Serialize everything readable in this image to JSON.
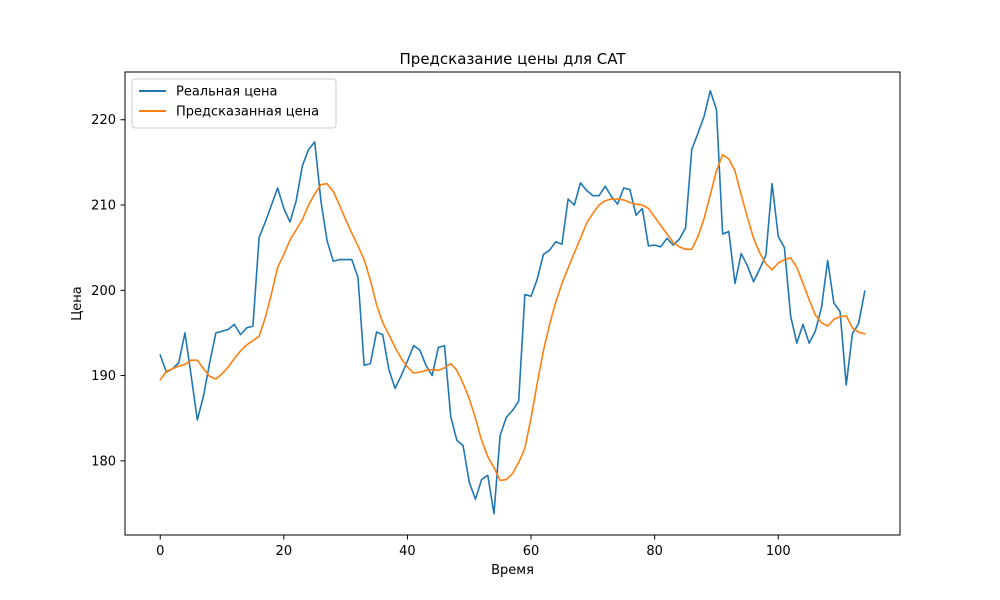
{
  "chart_data": {
    "type": "line",
    "title": "Предсказание цены для CAT",
    "xlabel": "Время",
    "ylabel": "Цена",
    "xlim": [
      -5.7,
      119.7
    ],
    "ylim": [
      171.3,
      225.6
    ],
    "xticks": [
      0,
      20,
      40,
      60,
      80,
      100
    ],
    "yticks": [
      180,
      190,
      200,
      210,
      220
    ],
    "legend_position": "upper-left",
    "grid": false,
    "series": [
      {
        "name": "Реальная цена",
        "color": "#1f77b4",
        "x": [
          0,
          1,
          2,
          3,
          4,
          5,
          6,
          7,
          8,
          9,
          10,
          11,
          12,
          13,
          14,
          15,
          16,
          17,
          18,
          19,
          20,
          21,
          22,
          23,
          24,
          25,
          26,
          27,
          28,
          29,
          30,
          31,
          32,
          33,
          34,
          35,
          36,
          37,
          38,
          39,
          40,
          41,
          42,
          43,
          44,
          45,
          46,
          47,
          48,
          49,
          50,
          51,
          52,
          53,
          54,
          55,
          56,
          57,
          58,
          59,
          60,
          61,
          62,
          63,
          64,
          65,
          66,
          67,
          68,
          69,
          70,
          71,
          72,
          73,
          74,
          75,
          76,
          77,
          78,
          79,
          80,
          81,
          82,
          83,
          84,
          85,
          86,
          87,
          88,
          89,
          90,
          91,
          92,
          93,
          94,
          95,
          96,
          97,
          98,
          99,
          100,
          101,
          102,
          103,
          104,
          105,
          106,
          107,
          108,
          109,
          110,
          111,
          112,
          113,
          114
        ],
        "values": [
          192.4,
          190.4,
          190.8,
          191.5,
          195.0,
          190.0,
          184.8,
          187.6,
          191.5,
          195.0,
          195.2,
          195.4,
          196.0,
          194.8,
          195.6,
          195.8,
          206.2,
          208.0,
          210.0,
          212.0,
          209.6,
          208.0,
          210.5,
          214.6,
          216.5,
          217.4,
          210.5,
          205.8,
          203.4,
          203.6,
          203.6,
          203.6,
          201.5,
          191.2,
          191.4,
          195.1,
          194.8,
          190.7,
          188.5,
          190.0,
          191.7,
          193.5,
          193.0,
          191.2,
          190.0,
          193.3,
          193.5,
          185.2,
          182.4,
          181.8,
          177.5,
          175.5,
          177.8,
          178.3,
          173.8,
          183.0,
          185.1,
          185.9,
          187.0,
          199.5,
          199.3,
          201.3,
          204.2,
          204.7,
          205.7,
          205.4,
          210.7,
          210.0,
          212.6,
          211.7,
          211.1,
          211.1,
          212.2,
          211.0,
          210.1,
          212.0,
          211.8,
          208.8,
          209.6,
          205.2,
          205.3,
          205.1,
          206.1,
          205.3,
          206.0,
          207.3,
          216.5,
          218.4,
          220.4,
          223.4,
          221.2,
          206.6,
          206.9,
          200.8,
          204.3,
          202.9,
          201.0,
          202.5,
          204.1,
          212.5,
          206.3,
          205.0,
          197.0,
          193.8,
          196.0,
          193.8,
          195.2,
          198.0,
          203.5,
          198.5,
          197.5,
          188.9,
          194.9,
          196.1,
          199.9
        ]
      },
      {
        "name": "Предсказанная цена",
        "color": "#ff7f0e",
        "x": [
          0,
          1,
          2,
          3,
          4,
          5,
          6,
          7,
          8,
          9,
          10,
          11,
          12,
          13,
          14,
          15,
          16,
          17,
          18,
          19,
          20,
          21,
          22,
          23,
          24,
          25,
          26,
          27,
          28,
          29,
          30,
          31,
          32,
          33,
          34,
          35,
          36,
          37,
          38,
          39,
          40,
          41,
          42,
          43,
          44,
          45,
          46,
          47,
          48,
          49,
          50,
          51,
          52,
          53,
          54,
          55,
          56,
          57,
          58,
          59,
          60,
          61,
          62,
          63,
          64,
          65,
          66,
          67,
          68,
          69,
          70,
          71,
          72,
          73,
          74,
          75,
          76,
          77,
          78,
          79,
          80,
          81,
          82,
          83,
          84,
          85,
          86,
          87,
          88,
          89,
          90,
          91,
          92,
          93,
          94,
          95,
          96,
          97,
          98,
          99,
          100,
          101,
          102,
          103,
          104,
          105,
          106,
          107,
          108,
          109,
          110,
          111,
          112,
          113,
          114
        ],
        "values": [
          189.5,
          190.5,
          190.8,
          191.1,
          191.3,
          191.8,
          191.8,
          190.8,
          189.9,
          189.6,
          190.2,
          191.0,
          192.0,
          192.9,
          193.6,
          194.1,
          194.6,
          196.8,
          199.6,
          202.7,
          204.2,
          205.9,
          207.1,
          208.3,
          210.0,
          211.3,
          212.4,
          212.5,
          211.6,
          210.0,
          208.3,
          206.7,
          205.2,
          203.6,
          201.2,
          198.3,
          196.2,
          194.8,
          193.3,
          192.0,
          191.0,
          190.3,
          190.4,
          190.6,
          190.7,
          190.6,
          190.9,
          191.4,
          190.6,
          189.1,
          187.3,
          185.0,
          182.4,
          180.5,
          179.2,
          177.7,
          177.8,
          178.5,
          179.8,
          181.5,
          185.0,
          189.1,
          192.9,
          196.0,
          198.6,
          200.8,
          202.6,
          204.4,
          206.1,
          207.9,
          209.0,
          210.0,
          210.5,
          210.7,
          210.7,
          210.6,
          210.3,
          210.1,
          210.0,
          209.6,
          208.6,
          207.6,
          206.6,
          205.6,
          205.1,
          204.8,
          204.8,
          206.3,
          208.4,
          211.2,
          214.0,
          215.9,
          215.4,
          214.0,
          211.2,
          208.6,
          206.1,
          204.4,
          203.1,
          202.4,
          203.2,
          203.6,
          203.8,
          202.7,
          200.8,
          198.9,
          197.1,
          196.2,
          195.8,
          196.6,
          196.9,
          197.0,
          195.6,
          195.1,
          194.9
        ]
      }
    ]
  }
}
